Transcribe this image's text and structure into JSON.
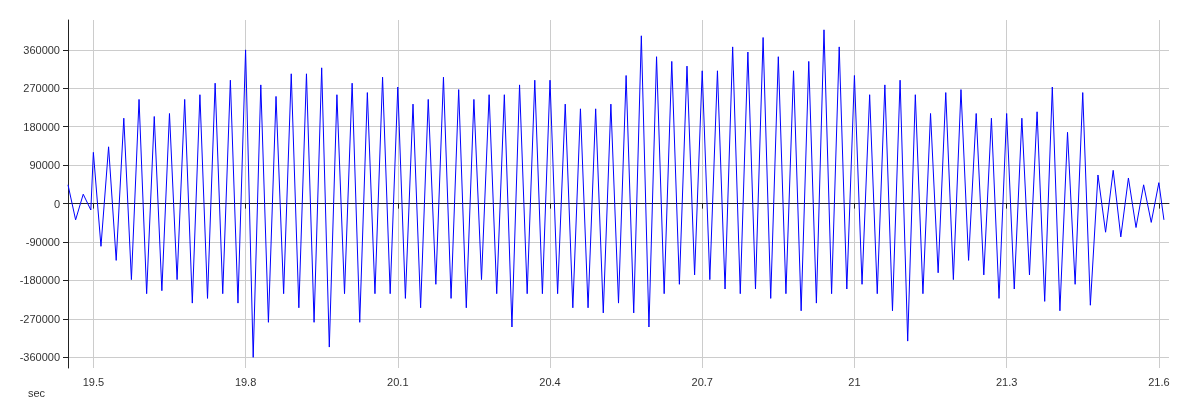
{
  "chart_data": {
    "type": "line",
    "xlabel": "sec",
    "x": [
      19.45,
      19.465,
      19.48,
      19.495,
      19.5,
      19.515,
      19.53,
      19.545,
      19.56,
      19.575,
      19.59,
      19.605,
      19.62,
      19.635,
      19.65,
      19.665,
      19.68,
      19.695,
      19.71,
      19.725,
      19.74,
      19.755,
      19.77,
      19.785,
      19.8,
      19.815,
      19.83,
      19.845,
      19.86,
      19.875,
      19.89,
      19.905,
      19.92,
      19.935,
      19.95,
      19.965,
      19.98,
      19.995,
      20.01,
      20.025,
      20.04,
      20.055,
      20.07,
      20.085,
      20.1,
      20.115,
      20.13,
      20.145,
      20.16,
      20.175,
      20.19,
      20.205,
      20.22,
      20.235,
      20.25,
      20.265,
      20.28,
      20.295,
      20.31,
      20.325,
      20.34,
      20.355,
      20.37,
      20.385,
      20.4,
      20.415,
      20.43,
      20.445,
      20.46,
      20.475,
      20.49,
      20.505,
      20.52,
      20.535,
      20.55,
      20.565,
      20.58,
      20.595,
      20.61,
      20.625,
      20.64,
      20.655,
      20.67,
      20.685,
      20.7,
      20.715,
      20.73,
      20.745,
      20.76,
      20.775,
      20.79,
      20.805,
      20.82,
      20.835,
      20.85,
      20.865,
      20.88,
      20.895,
      20.91,
      20.925,
      20.94,
      20.955,
      20.97,
      20.985,
      21.0,
      21.015,
      21.03,
      21.045,
      21.06,
      21.075,
      21.09,
      21.105,
      21.12,
      21.135,
      21.15,
      21.165,
      21.18,
      21.195,
      21.21,
      21.225,
      21.24,
      21.255,
      21.27,
      21.285,
      21.3,
      21.315,
      21.33,
      21.345,
      21.36,
      21.375,
      21.39,
      21.405,
      21.42,
      21.435,
      21.45,
      21.465,
      21.48,
      21.495,
      21.51,
      21.525,
      21.54,
      21.555,
      21.57,
      21.585,
      21.6,
      21.61
    ],
    "series": [
      {
        "color": "#0000ff",
        "values": [
          44000,
          -38000,
          22000,
          -15000,
          120000,
          -100000,
          133000,
          -133000,
          200000,
          -178000,
          244000,
          -211000,
          204000,
          -204000,
          211000,
          -178000,
          244000,
          -233000,
          255000,
          -222000,
          282000,
          -211000,
          289000,
          -233000,
          360000,
          -360000,
          278000,
          -278000,
          251000,
          -211000,
          304000,
          -244000,
          304000,
          -278000,
          318000,
          -336000,
          255000,
          -211000,
          282000,
          -278000,
          260000,
          -211000,
          296000,
          -211000,
          273000,
          -222000,
          233000,
          -244000,
          244000,
          -189000,
          296000,
          -222000,
          267000,
          -244000,
          244000,
          -178000,
          255000,
          -211000,
          255000,
          -289000,
          278000,
          -211000,
          289000,
          -211000,
          289000,
          -211000,
          233000,
          -244000,
          222000,
          -244000,
          222000,
          -256000,
          233000,
          -233000,
          300000,
          -256000,
          393000,
          -289000,
          344000,
          -211000,
          333000,
          -189000,
          322000,
          -167000,
          311000,
          -178000,
          311000,
          -200000,
          367000,
          -211000,
          355000,
          -200000,
          389000,
          -222000,
          344000,
          -211000,
          311000,
          -251000,
          333000,
          -233000,
          407000,
          -211000,
          367000,
          -200000,
          300000,
          -189000,
          255000,
          -211000,
          278000,
          -251000,
          289000,
          -322000,
          255000,
          -211000,
          211000,
          -162000,
          260000,
          -178000,
          267000,
          -133000,
          211000,
          -167000,
          200000,
          -222000,
          211000,
          -200000,
          200000,
          -167000,
          215000,
          -229000,
          273000,
          -251000,
          167000,
          -189000,
          260000,
          -238000,
          67000,
          -67000,
          78000,
          -78000,
          60000,
          -56000,
          44000,
          -44000,
          49000,
          -38000
        ]
      }
    ],
    "xlim": [
      19.45,
      21.62
    ],
    "xticks": [
      19.5,
      19.8,
      20.1,
      20.4,
      20.7,
      21,
      21.3,
      21.6
    ],
    "ylim": [
      -385000,
      430000
    ],
    "yticks": [
      -360000,
      -270000,
      -180000,
      -90000,
      0,
      90000,
      180000,
      270000,
      360000
    ],
    "grid": true,
    "marker": "none",
    "line_style": "solid"
  }
}
